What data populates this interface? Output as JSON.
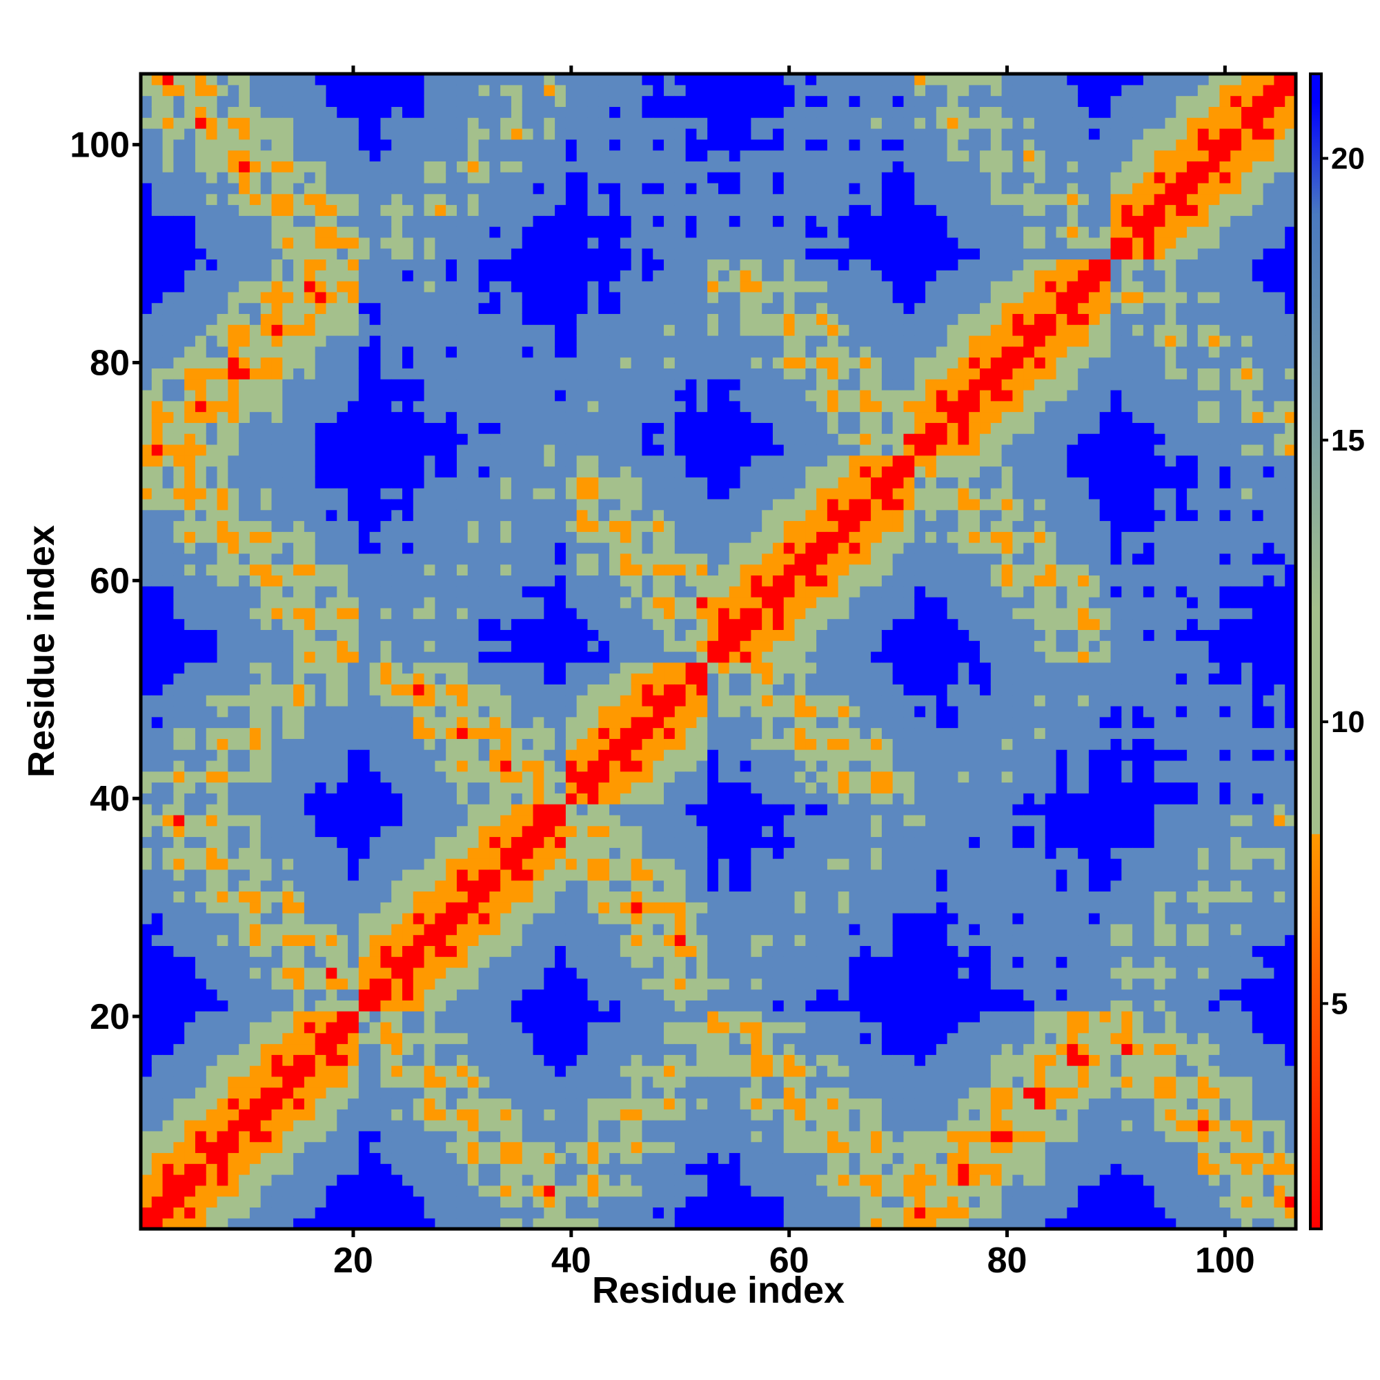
{
  "chart_data": {
    "type": "heatmap",
    "title": "",
    "xlabel": "Residue index",
    "ylabel": "Residue index",
    "n": 106,
    "xlim": [
      1,
      106
    ],
    "ylim": [
      1,
      106
    ],
    "x_ticks": [
      20,
      40,
      60,
      80,
      100
    ],
    "y_ticks": [
      20,
      40,
      60,
      80,
      100
    ],
    "x_tick_labels": [
      "20",
      "40",
      "60",
      "80",
      "100"
    ],
    "y_tick_labels": [
      "20",
      "40",
      "60",
      "80",
      "100"
    ],
    "colorbar": {
      "ticks": [
        5,
        10,
        15,
        20
      ],
      "tick_labels": [
        "5",
        "10",
        "15",
        "20"
      ],
      "range": [
        1,
        21.5
      ],
      "placement": "right",
      "stops": [
        {
          "value": 1.0,
          "color": "#ff0000"
        },
        {
          "value": 8.0,
          "color": "#ff9900"
        },
        {
          "value": 8.01,
          "color": "#a4c08c"
        },
        {
          "value": 12.0,
          "color": "#a4c08c"
        },
        {
          "value": 19.0,
          "color": "#4a7ac0"
        },
        {
          "value": 21.0,
          "color": "#0000ff"
        }
      ]
    },
    "colors": {
      "contact": "#ff0000",
      "near": "#ff9900",
      "medium": "#a4c08c",
      "far": "#5c88c0",
      "background": "#0000ff"
    },
    "cutoff": 21
  }
}
